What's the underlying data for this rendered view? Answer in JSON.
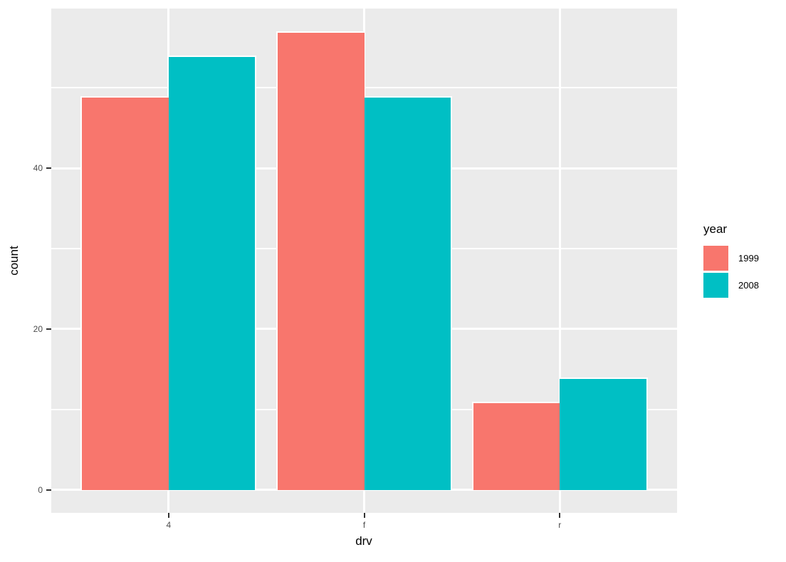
{
  "chart_data": {
    "type": "bar",
    "bar_mode": "dodge",
    "title": "",
    "xlabel": "drv",
    "ylabel": "count",
    "legend_title": "year",
    "legend_position": "right",
    "categories": [
      "4",
      "f",
      "r"
    ],
    "series": [
      {
        "name": "1999",
        "color": "#F8766D",
        "values": [
          49,
          57,
          11
        ]
      },
      {
        "name": "2008",
        "color": "#00BFC4",
        "values": [
          54,
          49,
          14
        ]
      }
    ],
    "y_major_breaks": [
      0,
      20,
      40
    ],
    "y_minor_breaks": [
      10,
      30,
      50
    ],
    "y_tick_labels": [
      "0",
      "20",
      "40"
    ],
    "x_tick_labels": [
      "4",
      "f",
      "r"
    ],
    "ylim": [
      -2.85,
      59.85
    ],
    "xlim": [
      0.4,
      3.6
    ],
    "bar_group_width": 0.9,
    "grid": true,
    "panel_background": "#EBEBEB",
    "grid_color": "#FFFFFF",
    "bar_outline_color": "#FFFFFF",
    "tick_color": "#333333",
    "tick_label_color": "#4D4D4D",
    "axis_title_color": "#000000"
  }
}
